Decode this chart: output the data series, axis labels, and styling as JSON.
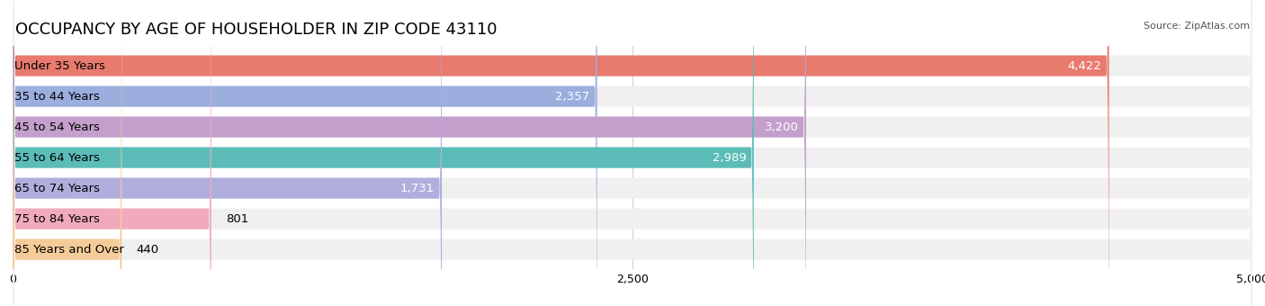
{
  "title": "OCCUPANCY BY AGE OF HOUSEHOLDER IN ZIP CODE 43110",
  "source": "Source: ZipAtlas.com",
  "categories": [
    "Under 35 Years",
    "35 to 44 Years",
    "45 to 54 Years",
    "55 to 64 Years",
    "65 to 74 Years",
    "75 to 84 Years",
    "85 Years and Over"
  ],
  "values": [
    4422,
    2357,
    3200,
    2989,
    1731,
    801,
    440
  ],
  "bar_colors": [
    "#E87B6E",
    "#9BAEDE",
    "#C49FCC",
    "#5BBCB8",
    "#B0AEDD",
    "#F0AABC",
    "#F5CC99"
  ],
  "xlim": [
    0,
    5000
  ],
  "xticks": [
    0,
    2500,
    5000
  ],
  "value_label_color_inside": [
    "#ffffff",
    "#ffffff",
    "#ffffff",
    "#ffffff",
    "#000000",
    "#000000",
    "#000000"
  ],
  "background_color": "#ffffff",
  "bar_bg_color": "#f0f0f0",
  "title_fontsize": 13,
  "label_fontsize": 9.5,
  "value_fontsize": 9.5
}
